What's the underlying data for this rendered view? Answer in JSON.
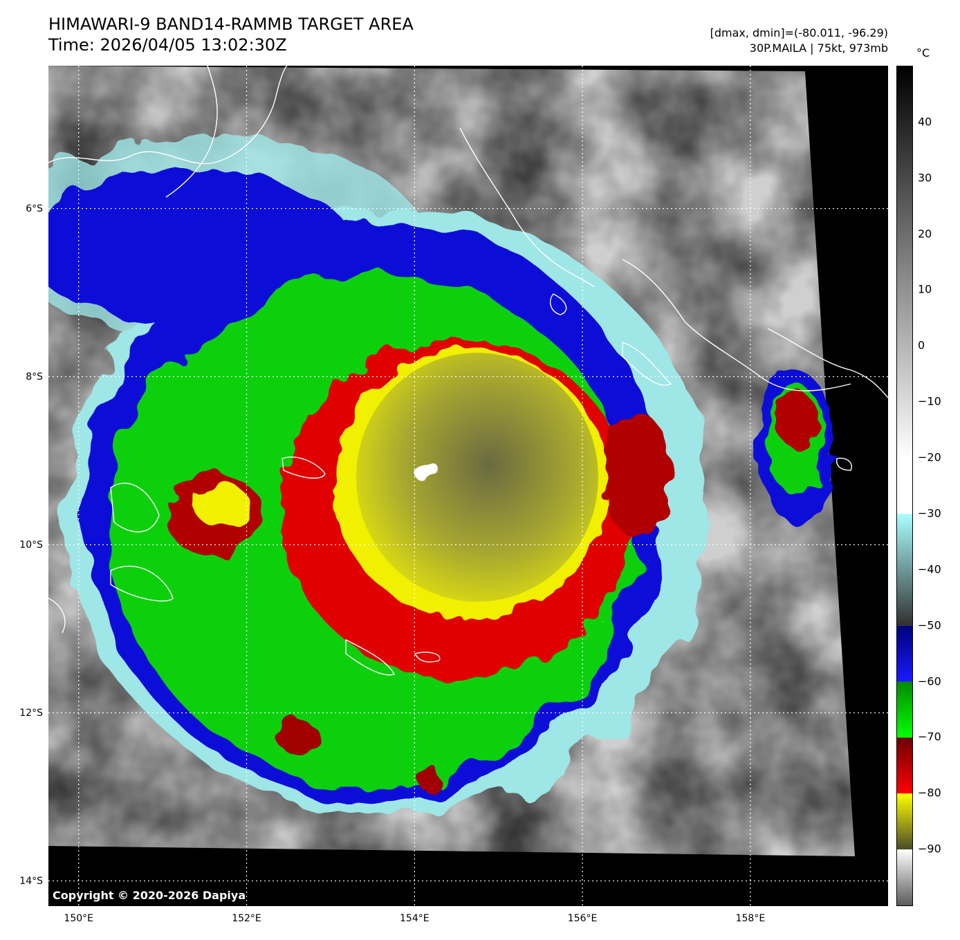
{
  "title": {
    "line1": "HIMAWARI-9 BAND14-RAMMB TARGET AREA",
    "line2": "Time: 2026/04/05 13:02:30Z"
  },
  "meta": {
    "line1": "[dmax, dmin]=(-80.011, -96.29)",
    "line2": "30P.MAILA | 75kt, 973mb"
  },
  "colorbar": {
    "unit": "°C",
    "ticks": [
      "40",
      "30",
      "20",
      "10",
      "0",
      "−10",
      "−20",
      "−30",
      "−40",
      "−50",
      "−60",
      "−70",
      "−80",
      "−90"
    ],
    "tick_values": [
      40,
      30,
      20,
      10,
      0,
      -10,
      -20,
      -30,
      -40,
      -50,
      -60,
      -70,
      -80,
      -90
    ],
    "range": [
      -100,
      50
    ],
    "segments": [
      {
        "from": 50,
        "to": -20,
        "colors": [
          "#000000",
          "#ffffff"
        ]
      },
      {
        "from": -20,
        "to": -30,
        "colors": [
          "#ffffff",
          "#ffffff"
        ]
      },
      {
        "from": -30,
        "to": -50,
        "colors": [
          "#aaffff",
          "#303030"
        ]
      },
      {
        "from": -50,
        "to": -60,
        "colors": [
          "#00007a",
          "#1a1aff"
        ]
      },
      {
        "from": -60,
        "to": -70,
        "colors": [
          "#008a00",
          "#00ff00"
        ]
      },
      {
        "from": -70,
        "to": -80,
        "colors": [
          "#6e0000",
          "#ff0000"
        ]
      },
      {
        "from": -80,
        "to": -90,
        "colors": [
          "#ffff00",
          "#4a4a2a"
        ]
      },
      {
        "from": -90,
        "to": -100,
        "colors": [
          "#ffffff",
          "#5a5a5a"
        ]
      }
    ]
  },
  "map": {
    "lat_labels": [
      "6°S",
      "8°S",
      "10°S",
      "12°S",
      "14°S"
    ],
    "lat_values": [
      -6,
      -8,
      -10,
      -12,
      -14
    ],
    "lon_labels": [
      "150°E",
      "152°E",
      "154°E",
      "156°E",
      "158°E"
    ],
    "lon_values": [
      150,
      152,
      154,
      156,
      158
    ],
    "lat_range": [
      -14.3,
      -4.3
    ],
    "lon_range": [
      149.64,
      159.64
    ],
    "storm_center": {
      "lat": -9.2,
      "lon": 154.6
    },
    "copyright": "Copyright © 2020-2026 Dapiya"
  }
}
